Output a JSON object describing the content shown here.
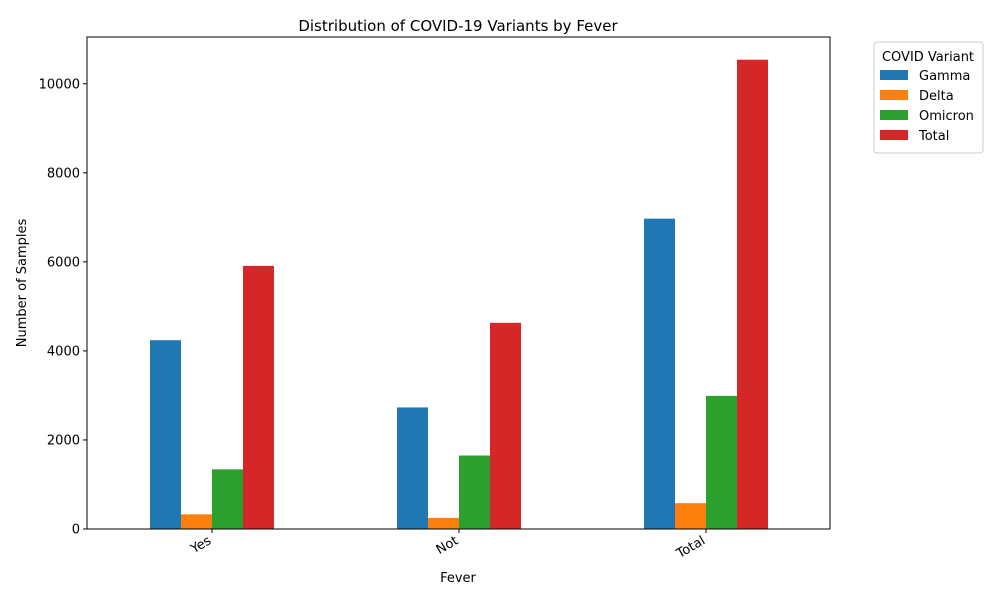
{
  "chart_data": {
    "type": "bar",
    "title": "Distribution of COVID-19 Variants by Fever",
    "xlabel": "Fever",
    "ylabel": "Number of Samples",
    "categories": [
      "Yes",
      "Not",
      "Total"
    ],
    "series": [
      {
        "name": "Gamma",
        "color": "#1f77b4",
        "values": [
          4240,
          2730,
          6970
        ]
      },
      {
        "name": "Delta",
        "color": "#ff7f0e",
        "values": [
          330,
          250,
          580
        ]
      },
      {
        "name": "Omicron",
        "color": "#2ca02c",
        "values": [
          1340,
          1650,
          2990
        ]
      },
      {
        "name": "Total",
        "color": "#d62728",
        "values": [
          5910,
          4630,
          10540
        ]
      }
    ],
    "ylim": [
      0,
      11050
    ],
    "yticks": [
      0,
      2000,
      4000,
      6000,
      8000,
      10000
    ],
    "legend_title": "COVID Variant",
    "legend_position": "outside-top-right",
    "grid": false
  }
}
